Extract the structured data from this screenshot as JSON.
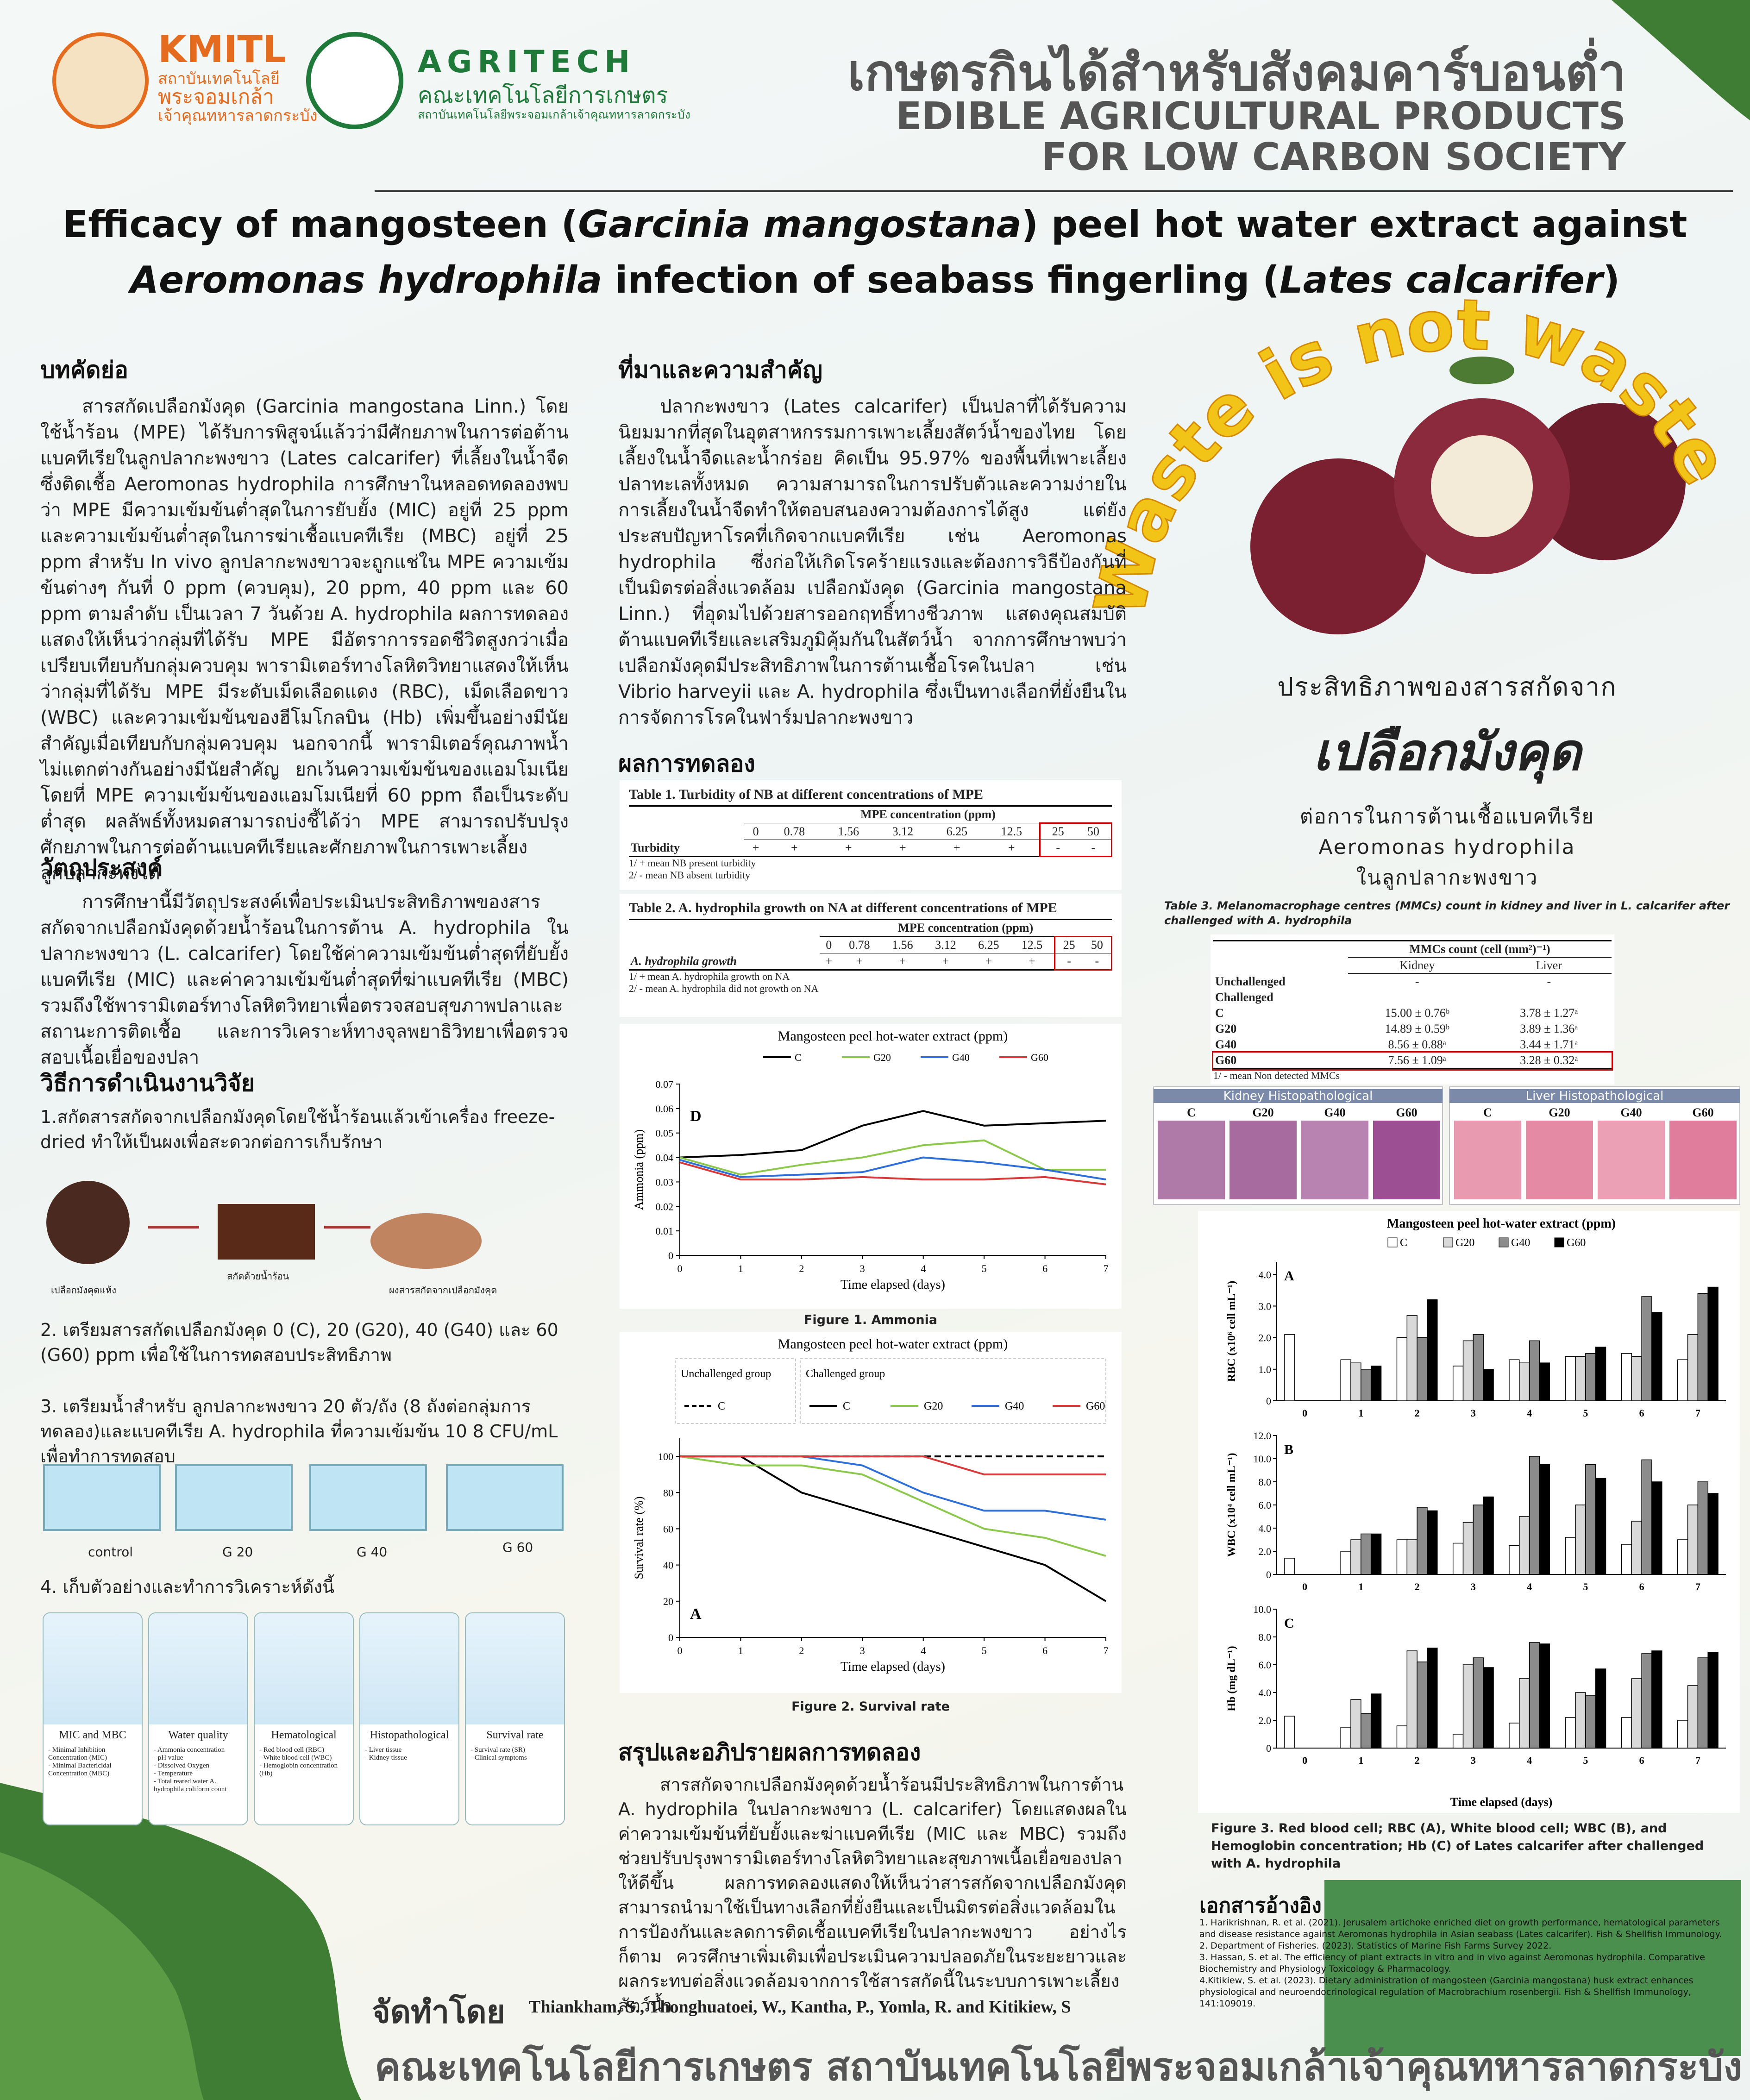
{
  "header": {
    "kmitl": "KMITL",
    "kmitl_lines": [
      "สถาบันเทคโนโลยี",
      "พระจอมเกล้า",
      "เจ้าคุณทหารลาดกระบัง"
    ],
    "agritech": "AGRITECH",
    "agritech_thai": "คณะเทคโนโลยีการเกษตร",
    "agritech_sub": "สถาบันเทคโนโลยีพระจอมเกล้าเจ้าคุณทหารลาดกระบัง",
    "thai_title": "เกษตรกินได้สำหรับสังคมคาร์บอนต่ำ",
    "en_title": [
      "EDIBLE AGRICULTURAL PRODUCTS",
      "FOR LOW CARBON SOCIETY"
    ]
  },
  "title": {
    "line1": [
      "Efficacy of mangosteen (",
      "Garcinia mangostana",
      ") peel hot water extract against"
    ],
    "line2": [
      "Aeromonas hydrophila",
      " infection of seabass fingerling (",
      "Lates calcarifer",
      ")"
    ]
  },
  "abstract": {
    "heading": "บทคัดย่อ",
    "text": "สารสกัดเปลือกมังคุด (Garcinia mangostana Linn.) โดยใช้น้ำร้อน (MPE) ได้รับการพิสูจน์แล้วว่ามีศักยภาพในการต่อต้านแบคทีเรียในลูกปลากะพงขาว (Lates calcarifer) ที่เลี้ยงในน้ำจืดซึ่งติดเชื้อ Aeromonas hydrophila การศึกษาในหลอดทดลองพบว่า MPE มีความเข้มข้นต่ำสุดในการยับยั้ง (MIC) อยู่ที่ 25 ppm และความเข้มข้นต่ำสุดในการฆ่าเชื้อแบคทีเรีย (MBC) อยู่ที่ 25 ppm สำหรับ In vivo ลูกปลากะพงขาวจะถูกแช่ใน MPE ความเข้มข้นต่างๆ กันที่ 0 ppm (ควบคุม), 20 ppm, 40 ppm และ 60 ppm ตามลำดับ เป็นเวลา 7 วันด้วย A. hydrophila ผลการทดลองแสดงให้เห็นว่ากลุ่มที่ได้รับ MPE มีอัตราการรอดชีวิตสูงกว่าเมื่อเปรียบเทียบกับกลุ่มควบคุม พารามิเตอร์ทางโลหิตวิทยาแสดงให้เห็นว่ากลุ่มที่ได้รับ MPE มีระดับเม็ดเลือดแดง (RBC), เม็ดเลือดขาว (WBC) และความเข้มข้นของฮีโมโกลบิน (Hb) เพิ่มขึ้นอย่างมีนัยสำคัญเมื่อเทียบกับกลุ่มควบคุม นอกจากนี้ พารามิเตอร์คุณภาพน้ำไม่แตกต่างกันอย่างมีนัยสำคัญ ยกเว้นความเข้มข้นของแอมโมเนีย โดยที่ MPE ความเข้มข้นของแอมโมเนียที่ 60 ppm ถือเป็นระดับต่ำสุด ผลลัพธ์ทั้งหมดสามารถบ่งชี้ได้ว่า MPE สามารถปรับปรุงศักยภาพในการต่อต้านแบคทีเรียและศักยภาพในการเพาะเลี้ยงลูกปลากะพงได้"
  },
  "objective": {
    "heading": "วัตถุประสงค์",
    "text": "การศึกษานี้มีวัตถุประสงค์เพื่อประเมินประสิทธิภาพของสารสกัดจากเปลือกมังคุดด้วยน้ำร้อนในการต้าน A. hydrophila ในปลากะพงขาว (L. calcarifer) โดยใช้ค่าความเข้มข้นต่ำสุดที่ยับยั้งแบคทีเรีย (MIC) และค่าความเข้มข้นต่ำสุดที่ฆ่าแบคทีเรีย (MBC) รวมถึงใช้พารามิเตอร์ทางโลหิตวิทยาเพื่อตรวจสอบสุขภาพปลาและสถานะการติดเชื้อ และการวิเคราะห์ทางจุลพยาธิวิทยาเพื่อตรวจสอบเนื้อเยื่อของปลา"
  },
  "methods": {
    "heading": "วิธีการดำเนินงานวิจัย",
    "step1": "1.สกัดสารสกัดจากเปลือกมังคุดโดยใช้น้ำร้อนแล้วเข้าเครื่อง freeze-dried ทำให้เป็นผงเพื่อสะดวกต่อการเก็บรักษา",
    "step1_images": [
      "เปลือกมังคุดแห้ง",
      "สกัดด้วยน้ำร้อน",
      "ผงสารสกัดจากเปลือกมังคุด"
    ],
    "step2": "2. เตรียมสารสกัดเปลือกมังคุด 0 (C), 20 (G20), 40 (G40) และ 60 (G60) ppm เพื่อใช้ในการทดสอบประสิทธิภาพ",
    "step3": "3. เตรียมน้ำสำหรับ ลูกปลากะพงขาว 20 ตัว/ถัง (8 ถังต่อกลุ่มการทดลอง)และแบคทีเรีย A. hydrophila ที่ความเข้มข้น 10 8 CFU/mL เพื่อทำการทดสอบ",
    "tanks": [
      "control",
      "G 20",
      "G 40",
      "G 60"
    ],
    "step4": "4. เก็บตัวอย่างและทำการวิเคราะห์ดังนี้",
    "boxes": [
      {
        "title": "MIC and MBC",
        "items": [
          "- Minimal Inhibition Concentration (MIC)",
          "- Minimal Bactericidal Concentration (MBC)"
        ]
      },
      {
        "title": "Water quality",
        "items": [
          "- Ammonia concentration",
          "- pH value",
          "- Dissolved Oxygen",
          "- Temperature",
          "- Total reared water A. hydrophila coliform count"
        ]
      },
      {
        "title": "Hematological",
        "items": [
          "- Red blood cell (RBC)",
          "- White blood cell (WBC)",
          "- Hemoglobin concentration (Hb)"
        ]
      },
      {
        "title": "Histopathological",
        "items": [
          "- Liver tissue",
          "- Kidney tissue"
        ]
      },
      {
        "title": "Survival rate",
        "items": [
          "- Survival rate (SR)",
          "- Clinical symptoms"
        ]
      }
    ]
  },
  "background": {
    "heading": "ที่มาและความสำคัญ",
    "text": "ปลากะพงขาว (Lates calcarifer) เป็นปลาที่ได้รับความนิยมมากที่สุดในอุตสาหกรรมการเพาะเลี้ยงสัตว์น้ำของไทย โดยเลี้ยงในน้ำจืดและน้ำกร่อย คิดเป็น 95.97% ของพื้นที่เพาะเลี้ยงปลาทะเลทั้งหมด ความสามารถในการปรับตัวและความง่ายในการเลี้ยงในน้ำจืดทำให้ตอบสนองความต้องการได้สูง แต่ยังประสบปัญหาโรคที่เกิดจากแบคทีเรีย เช่น Aeromonas hydrophila ซึ่งก่อให้เกิดโรคร้ายแรงและต้องการวิธีป้องกันที่เป็นมิตรต่อสิ่งแวดล้อม เปลือกมังคุด (Garcinia mangostana Linn.) ที่อุดมไปด้วยสารออกฤทธิ์ทางชีวภาพ แสดงคุณสมบัติต้านแบคทีเรียและเสริมภูมิคุ้มกันในสัตว์น้ำ จากการศึกษาพบว่าเปลือกมังคุดมีประสิทธิภาพในการต้านเชื้อโรคในปลา เช่น Vibrio harveyii และ A. hydrophila ซึ่งเป็นทางเลือกที่ยั่งยืนในการจัดการโรคในฟาร์มปลากะพงขาว"
  },
  "results": {
    "heading": "ผลการทดลอง",
    "table1": {
      "title": "Table 1. Turbidity of NB at different concentrations of MPE",
      "header": "MPE concentration (ppm)",
      "columns": [
        "0",
        "0.78",
        "1.56",
        "3.12",
        "6.25",
        "12.5",
        "25",
        "50"
      ],
      "rows": [
        {
          "label": "Turbidity",
          "cells": [
            "+",
            "+",
            "+",
            "+",
            "+",
            "+",
            "-",
            "-"
          ]
        }
      ],
      "notes": [
        "1/ + mean NB present turbidity",
        "2/ - mean NB absent turbidity"
      ]
    },
    "table2": {
      "title": "Table 2. A. hydrophila growth on NA at different concentrations of MPE",
      "header": "MPE concentration (ppm)",
      "columns": [
        "0",
        "0.78",
        "1.56",
        "3.12",
        "6.25",
        "12.5",
        "25",
        "50"
      ],
      "rows": [
        {
          "label": "A. hydrophila growth",
          "cells": [
            "+",
            "+",
            "+",
            "+",
            "+",
            "+",
            "-",
            "-"
          ]
        }
      ],
      "notes": [
        "1/ + mean A. hydrophila growth on NA",
        "2/ - mean A. hydrophila did not growth on NA"
      ]
    },
    "figure1_caption": "Figure 1. Ammonia",
    "figure2_caption": "Figure 2. Survival rate"
  },
  "conclusion": {
    "heading": "สรุปและอภิปรายผลการทดลอง",
    "text": "สารสกัดจากเปลือกมังคุดด้วยน้ำร้อนมีประสิทธิภาพในการต้าน A. hydrophila ในปลากะพงขาว (L. calcarifer) โดยแสดงผลในค่าความเข้มข้นที่ยับยั้งและฆ่าแบคทีเรีย (MIC และ MBC) รวมถึงช่วยปรับปรุงพารามิเตอร์ทางโลหิตวิทยาและสุขภาพเนื้อเยื่อของปลาให้ดีขึ้น ผลการทดลองแสดงให้เห็นว่าสารสกัดจากเปลือกมังคุดสามารถนำมาใช้เป็นทางเลือกที่ยั่งยืนและเป็นมิตรต่อสิ่งแวดล้อมในการป้องกันและลดการติดเชื้อแบคทีเรียในปลากะพงขาว อย่างไรก็ตาม ควรศึกษาเพิ่มเติมเพื่อประเมินความปลอดภัยในระยะยาวและผลกระทบต่อสิ่งแวดล้อมจากการใช้สารสกัดนี้ในระบบการเพาะเลี้ยงสัตว์น้ำ"
  },
  "promo": {
    "slogan": "Waste is not waste",
    "line1": "ประสิทธิภาพของสารสกัดจาก",
    "line2": "เปลือกมังคุด",
    "line3": "ต่อการในการต้านเชื้อแบคทีเรีย",
    "line4": "Aeromonas hydrophila",
    "line5": "ในลูกปลากะพงขาว"
  },
  "table3": {
    "title": "Table 3. Melanomacrophage centres (MMCs) count in kidney and liver in L. calcarifer after challenged with A. hydrophila",
    "header": "MMCs count (cell (mm²)⁻¹)",
    "columns": [
      "Kidney",
      "Liver"
    ],
    "rows": [
      {
        "label": "Unchallenged",
        "cells": [
          "-",
          "-"
        ]
      },
      {
        "label": "Challenged",
        "cells": []
      },
      {
        "label": "C",
        "cells": [
          "15.00 ± 0.76ᵇ",
          "3.78 ± 1.27ᵃ"
        ]
      },
      {
        "label": "G20",
        "cells": [
          "14.89 ± 0.59ᵇ",
          "3.89 ± 1.36ᵃ"
        ]
      },
      {
        "label": "G40",
        "cells": [
          "8.56 ± 0.88ᵃ",
          "3.44 ± 1.71ᵃ"
        ]
      },
      {
        "label": "G60",
        "cells": [
          "7.56 ± 1.09ᵃ",
          "3.28 ± 0.32ᵃ"
        ]
      }
    ],
    "notes": [
      "1/ - mean Non detected MMCs"
    ]
  },
  "histology": {
    "kidney": "Kidney Histopathological",
    "liver": "Liver Histopathological",
    "groups": [
      "C",
      "G20",
      "G40",
      "G60"
    ]
  },
  "figure3_caption": "Figure 3. Red blood cell; RBC (A), White blood cell; WBC (B), and Hemoglobin concentration; Hb (C) of Lates calcarifer after challenged with A. hydrophila",
  "references": {
    "heading": "เอกสารอ้างอิง",
    "items": [
      "1. Harikrishnan, R. et al. (2021). Jerusalem artichoke enriched diet on growth performance, hematological parameters and disease resistance against Aeromonas hydrophila in Asian seabass (Lates calcarifer). Fish & Shellfish Immunology.",
      "2. Department of Fisheries. (2023). Statistics of Marine Fish Farms Survey 2022.",
      "3. Hassan, S. et al. The efficiency of plant extracts in vitro and in vivo against Aeromonas hydrophila. Comparative Biochemistry and Physiology Toxicology & Pharmacology.",
      "4.Kitikiew, S. et al. (2023). Dietary administration of mangosteen (Garcinia mangostana) husk extract enhances physiological and neuroendocrinological regulation of Macrobrachium rosenbergii. Fish & Shellfish Immunology, 141:109019."
    ]
  },
  "footer": {
    "by": "จัดทำโดย",
    "authors": "Thiankham, S., Thonghuatoei, W., Kantha, P., Yomla, R. and Kitikiew, S",
    "institution": "คณะเทคโนโลยีการเกษตร สถาบันเทคโนโลยีพระจอมเกล้าเจ้าคุณทหารลาดกระบัง"
  },
  "chart_data": [
    {
      "type": "line",
      "title": "Mangosteen peel hot-water extract (ppm)",
      "panel": "D",
      "x": [
        0,
        1,
        2,
        3,
        4,
        5,
        6,
        7
      ],
      "xlim": [
        0,
        7
      ],
      "xticks": [
        0,
        1,
        2,
        3,
        4,
        5,
        6,
        7
      ],
      "ylim": [
        0,
        0.07
      ],
      "yticks": [
        0,
        0.01,
        0.02,
        0.03,
        0.04,
        0.05,
        0.06,
        0.07
      ],
      "xlabel": "Time elapsed (days)",
      "ylabel": "Ammonia (ppm)",
      "series": [
        {
          "name": "C",
          "color": "#000000",
          "values": [
            0.04,
            0.041,
            0.043,
            0.053,
            0.059,
            0.053,
            0.054,
            0.055
          ]
        },
        {
          "name": "G20",
          "color": "#8cc84b",
          "values": [
            0.04,
            0.033,
            0.037,
            0.04,
            0.045,
            0.047,
            0.035,
            0.035
          ]
        },
        {
          "name": "G40",
          "color": "#2e6fd8",
          "values": [
            0.039,
            0.032,
            0.033,
            0.034,
            0.04,
            0.038,
            0.035,
            0.031
          ]
        },
        {
          "name": "G60",
          "color": "#d83a3a",
          "values": [
            0.038,
            0.031,
            0.031,
            0.032,
            0.031,
            0.031,
            0.032,
            0.029
          ]
        }
      ]
    },
    {
      "type": "line",
      "title": "Mangosteen peel hot-water extract (ppm)",
      "panel": "A",
      "groups": [
        "Unchallenged group",
        "Challenged group"
      ],
      "x": [
        0,
        1,
        2,
        3,
        4,
        5,
        6,
        7
      ],
      "xlim": [
        0,
        7
      ],
      "xticks": [
        0,
        1,
        2,
        3,
        4,
        5,
        6,
        7
      ],
      "ylim": [
        0,
        110
      ],
      "yticks": [
        0,
        20,
        40,
        60,
        80,
        100
      ],
      "xlabel": "Time elapsed (days)",
      "ylabel": "Survival rate (%)",
      "series": [
        {
          "name": "C",
          "group": 0,
          "dashed": true,
          "color": "#000000",
          "values": [
            100,
            100,
            100,
            100,
            100,
            100,
            100,
            100
          ]
        },
        {
          "name": "C",
          "group": 1,
          "color": "#000000",
          "values": [
            100,
            100,
            80,
            70,
            60,
            50,
            40,
            20
          ]
        },
        {
          "name": "G20",
          "group": 1,
          "color": "#8cc84b",
          "values": [
            100,
            95,
            95,
            90,
            75,
            60,
            55,
            45
          ]
        },
        {
          "name": "G40",
          "group": 1,
          "color": "#2e6fd8",
          "values": [
            100,
            100,
            100,
            95,
            80,
            70,
            70,
            65
          ]
        },
        {
          "name": "G60",
          "group": 1,
          "color": "#d83a3a",
          "values": [
            100,
            100,
            100,
            100,
            100,
            90,
            90,
            90
          ]
        }
      ]
    },
    {
      "type": "bar",
      "title": "Mangosteen peel hot-water extract (ppm)",
      "categories": [
        "0",
        "1",
        "2",
        "3",
        "4",
        "5",
        "6",
        "7"
      ],
      "xlabel": "Time elapsed (days)",
      "series": [
        {
          "name": "C",
          "color": "#ffffff"
        },
        {
          "name": "G20",
          "color": "#d9d9d9"
        },
        {
          "name": "G40",
          "color": "#8c8c8c"
        },
        {
          "name": "G60",
          "color": "#000000"
        }
      ],
      "panels": [
        {
          "label": "A",
          "ylabel": "RBC (x10⁶ cell mL⁻¹)",
          "ylim": [
            0,
            4.4
          ],
          "yticks": [
            0,
            {
              "value": 1,
              "label": "1.0"
            },
            {
              "value": 2,
              "label": "2.0"
            },
            {
              "value": 3,
              "label": "3.0"
            },
            {
              "value": 4,
              "label": "4.0"
            }
          ],
          "values": [
            [
              2.1,
              1.3,
              2.0,
              1.1,
              1.3,
              1.4,
              1.5,
              1.3
            ],
            [
              null,
              1.2,
              2.7,
              1.9,
              1.2,
              1.4,
              1.4,
              2.1
            ],
            [
              null,
              1.0,
              2.0,
              2.1,
              1.9,
              1.5,
              3.3,
              3.4
            ],
            [
              null,
              1.1,
              3.2,
              1.0,
              1.2,
              1.7,
              2.8,
              3.6
            ]
          ]
        },
        {
          "label": "B",
          "ylabel": "WBC (x10⁴ cell mL⁻¹)",
          "ylim": [
            0,
            12
          ],
          "yticks": [
            0,
            {
              "value": 2,
              "label": "2.0"
            },
            {
              "value": 4,
              "label": "4.0"
            },
            {
              "value": 6,
              "label": "6.0"
            },
            {
              "value": 8,
              "label": "8.0"
            },
            {
              "value": 10,
              "label": "10.0"
            },
            {
              "value": 12,
              "label": "12.0"
            }
          ],
          "values": [
            [
              1.4,
              2.0,
              3.0,
              2.7,
              2.5,
              3.2,
              2.6,
              3.0
            ],
            [
              null,
              3.0,
              3.0,
              4.5,
              5.0,
              6.0,
              4.6,
              6.0
            ],
            [
              null,
              3.5,
              5.8,
              6.0,
              10.2,
              9.5,
              9.9,
              8.0
            ],
            [
              null,
              3.5,
              5.5,
              6.7,
              9.5,
              8.3,
              8.0,
              7.0
            ]
          ]
        },
        {
          "label": "C",
          "ylabel": "Hb (mg dL⁻¹)",
          "ylim": [
            0,
            10
          ],
          "yticks": [
            0,
            {
              "value": 2,
              "label": "2.0"
            },
            {
              "value": 4,
              "label": "4.0"
            },
            {
              "value": 6,
              "label": "6.0"
            },
            {
              "value": 8,
              "label": "8.0"
            },
            {
              "value": 10,
              "label": "10.0"
            }
          ],
          "values": [
            [
              2.3,
              1.5,
              1.6,
              1.0,
              1.8,
              2.2,
              2.2,
              2.0
            ],
            [
              null,
              3.5,
              7.0,
              6.0,
              5.0,
              4.0,
              5.0,
              4.5
            ],
            [
              null,
              2.5,
              6.2,
              6.5,
              7.6,
              3.8,
              6.8,
              6.5
            ],
            [
              null,
              3.9,
              7.2,
              5.8,
              7.5,
              5.7,
              7.0,
              6.9
            ]
          ]
        }
      ]
    }
  ]
}
